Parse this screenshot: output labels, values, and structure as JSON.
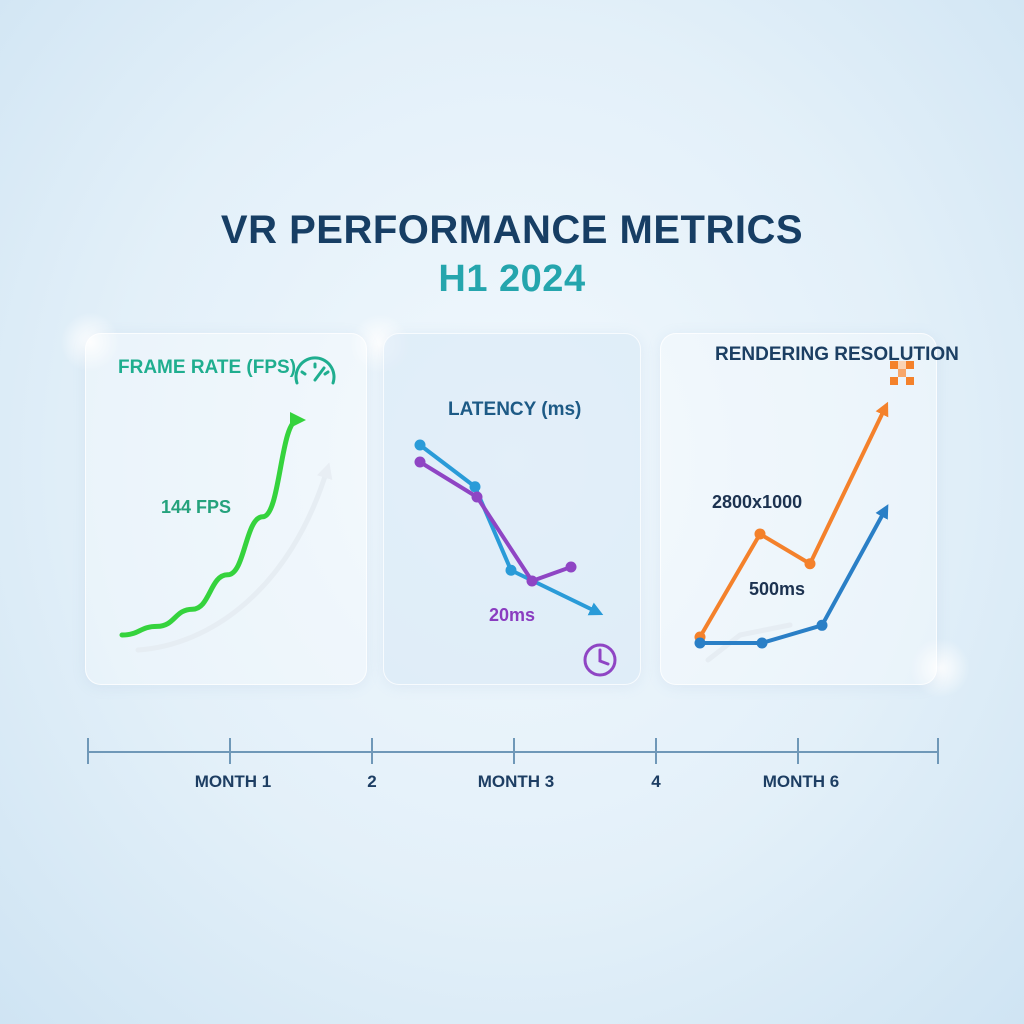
{
  "title": "VR PERFORMANCE METRICS",
  "subtitle": "H1 2024",
  "panels": {
    "fps": {
      "title": "FRAME RATE (FPS)",
      "value_label": "144 FPS",
      "icon": "speedometer-icon",
      "color": "#35d33d"
    },
    "latency": {
      "title": "LATENCY (ms)",
      "value_label": "20ms",
      "icon": "clock-icon"
    },
    "resolution": {
      "title": "RENDERING RESOLUTION",
      "value_label": "2800x1000",
      "secondary_label": "500ms",
      "icon": "pixel-grid-icon"
    }
  },
  "timeline": {
    "ticks": [
      "MONTH 1",
      "2",
      "MONTH 3",
      "4",
      "MONTH 6"
    ]
  },
  "chart_data": [
    {
      "type": "line",
      "panel": "fps",
      "title": "FRAME RATE (FPS)",
      "trend": "rising",
      "annotations": [
        "144 FPS"
      ],
      "series": [
        {
          "color": "#35d33d",
          "values": [
            0.0,
            0.04,
            0.12,
            0.28,
            0.55,
            1.0
          ]
        }
      ]
    },
    {
      "type": "line",
      "panel": "latency",
      "title": "LATENCY (ms)",
      "trend": "falling",
      "annotations": [
        "20ms"
      ],
      "series": [
        {
          "color": "#2a9bd8",
          "values": [
            1.0,
            0.75,
            0.25,
            0.0
          ]
        },
        {
          "color": "#8f45c4",
          "values": [
            1.0,
            0.75,
            0.15,
            0.25
          ]
        }
      ]
    },
    {
      "type": "line",
      "panel": "resolution",
      "title": "RENDERING RESOLUTION",
      "trend": "rising",
      "annotations": [
        "2800x1000",
        "500ms"
      ],
      "series": [
        {
          "color": "#f4812b",
          "values": [
            0.0,
            0.45,
            0.32,
            1.0
          ]
        },
        {
          "color": "#2a7fc6",
          "values": [
            0.0,
            0.0,
            0.1,
            0.75
          ]
        }
      ]
    }
  ]
}
